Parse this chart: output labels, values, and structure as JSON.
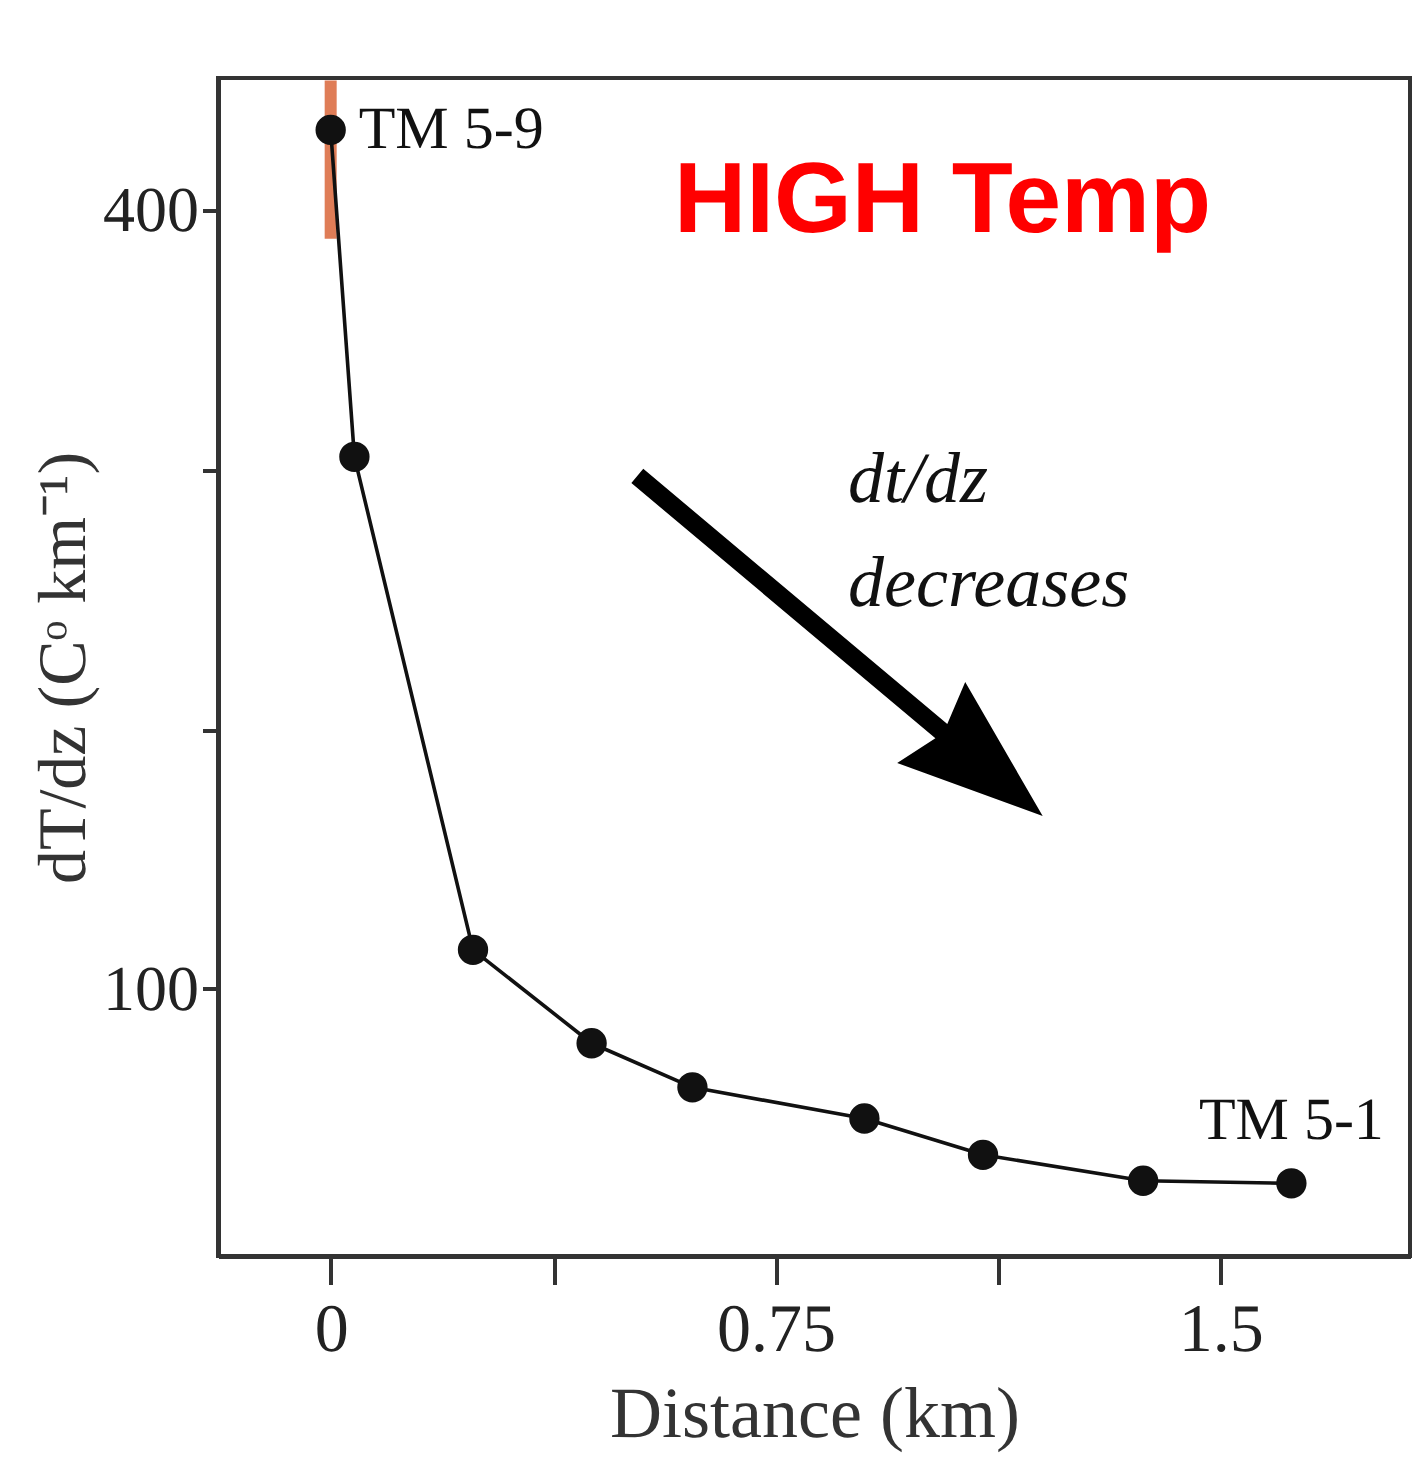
{
  "chart_data": {
    "type": "line",
    "xlabel": "Distance (km)",
    "ylabel": "dT/dz (Cᵒ km⁻¹)",
    "x": [
      0,
      0.04,
      0.24,
      0.44,
      0.61,
      0.9,
      1.1,
      1.37,
      1.62
    ],
    "series": [
      {
        "color": "#111111",
        "values": [
          431,
          305,
          115,
          79,
          62,
          50,
          36,
          26,
          25
        ],
        "errors": [
          [
            389,
            450
          ],
          null,
          null,
          null,
          null,
          null,
          null,
          null,
          null
        ]
      }
    ],
    "xlim": [
      -0.19,
      1.82
    ],
    "ylim": [
      -3,
      451
    ],
    "xticks": [
      0,
      {
        "value": 0.375,
        "label": null
      },
      0.75,
      {
        "value": 1.125,
        "label": null
      },
      1.5
    ],
    "yticks": [
      100,
      {
        "value": 200,
        "label": null
      },
      {
        "value": 300,
        "label": null
      },
      400
    ],
    "marker": "circle",
    "line_style": "solid",
    "grid": false,
    "annotations": [
      {
        "text": "TM 5-9",
        "x": 0,
        "y": 431
      },
      {
        "text": "TM 5-1",
        "x": 1.62,
        "y": 25
      },
      "HIGH Temp",
      "dt/dz decreases"
    ]
  }
}
